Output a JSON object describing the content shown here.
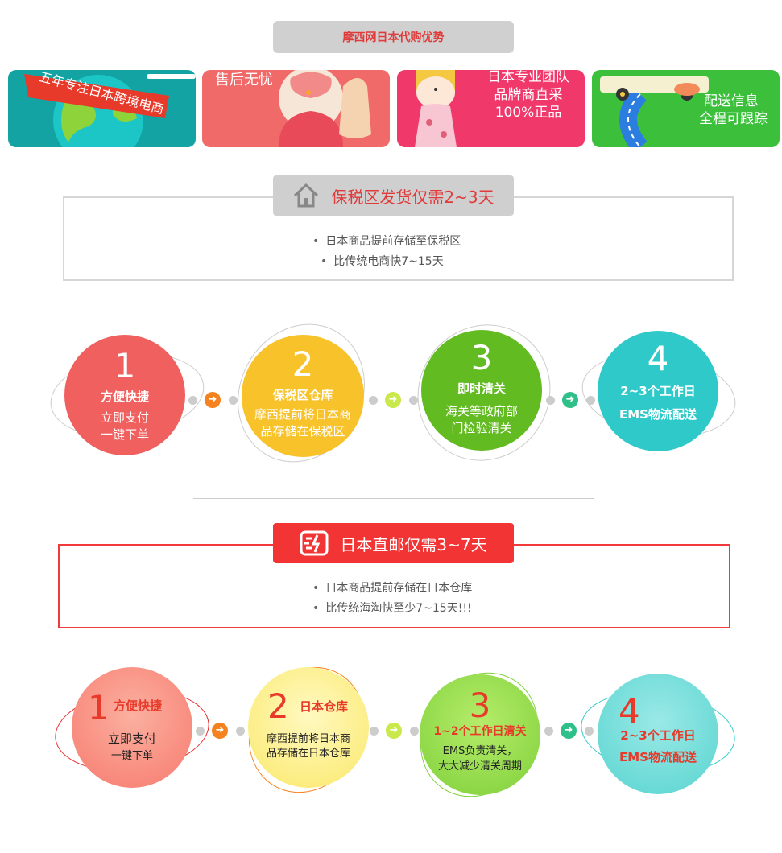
{
  "header": {
    "title": "摩西网日本代购优势"
  },
  "banners": [
    {
      "text": "五年专注日本跨境电商",
      "icon": "globe-icon",
      "bg": "#14a3a3"
    },
    {
      "text": "售后无忧",
      "icon": "thumbs-up-icon",
      "bg": "#f06a6a"
    },
    {
      "line1": "日本专业团队",
      "line2": "品牌商直采",
      "line3": "100%正品",
      "icon": "doll-icon",
      "bg": "#f0386b"
    },
    {
      "line1": "配送信息",
      "line2": "全程可跟踪",
      "icon": "truck-icon",
      "bg": "#3cc03c"
    }
  ],
  "section1": {
    "heading": "保税区发货仅需2~3天",
    "bullets": [
      "日本商品提前存储至保税区",
      "比传统电商快7~15天"
    ],
    "steps": [
      {
        "num": "1",
        "title": "方便快捷",
        "desc1": "立即支付",
        "desc2": "一键下单",
        "color": "#f0605f"
      },
      {
        "num": "2",
        "title": "保税区仓库",
        "desc1": "摩西提前将日本商",
        "desc2": "品存储在保税区",
        "color": "#f8c22b"
      },
      {
        "num": "3",
        "title": "即时清关",
        "desc1": "海关等政府部",
        "desc2": "门检验清关",
        "color": "#62bb21"
      },
      {
        "num": "4",
        "title": "2~3个工作日",
        "desc1": "EMS物流配送",
        "desc2": "",
        "color": "#2fc9c9"
      }
    ],
    "arrow_colors": [
      "#f5821f",
      "#c9e84a",
      "#2fc08a"
    ]
  },
  "section2": {
    "heading": "日本直邮仅需3~7天",
    "bullets": [
      "日本商品提前存储在日本仓库",
      "比传统海淘快至少7~15天!!!"
    ],
    "steps": [
      {
        "num": "1",
        "title": "方便快捷",
        "desc1": "立即支付",
        "desc2": "一键下单",
        "color": "#f77a6e"
      },
      {
        "num": "2",
        "title": "日本仓库",
        "desc1": "摩西提前将日本商",
        "desc2": "品存储在日本仓库",
        "color": "#fbe86a"
      },
      {
        "num": "3",
        "title": "1~2个工作日清关",
        "desc1": "EMS负责清关，",
        "desc2": "大大减少清关周期",
        "color": "#7fd03a"
      },
      {
        "num": "4",
        "title": "2~3个工作日",
        "desc1": "EMS物流配送",
        "desc2": "",
        "color": "#58d4d0"
      }
    ],
    "arrow_colors": [
      "#f5821f",
      "#c9e84a",
      "#2fc08a"
    ]
  }
}
